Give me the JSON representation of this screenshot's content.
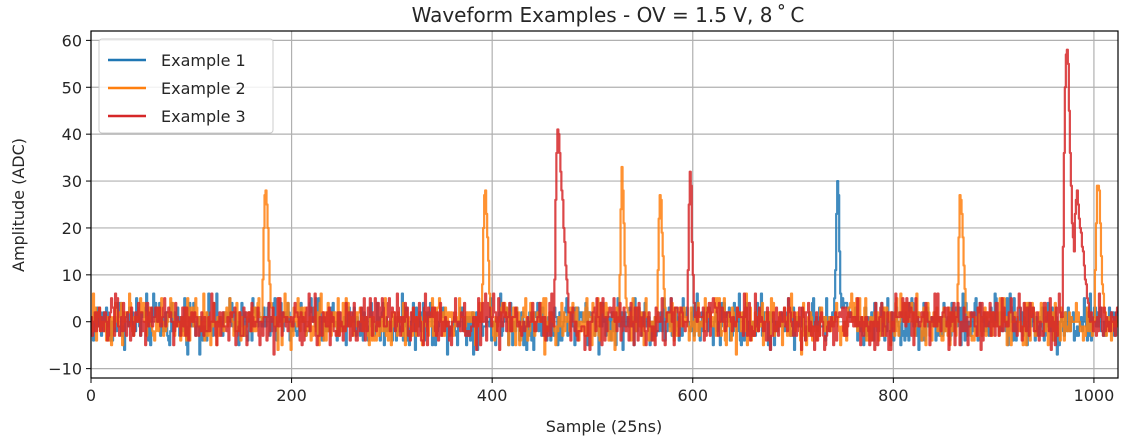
{
  "chart_data": {
    "type": "line",
    "title": "Waveform Examples - OV = 1.5 V, 8$^\\circ$C",
    "title_display": "Waveform Examples - OV = 1.5 V, 8 ˚ C",
    "xlabel": "Sample (25ns)",
    "ylabel": "Amplitude (ADC)",
    "xlim": [
      0,
      1024
    ],
    "ylim": [
      -12,
      62
    ],
    "xticks": [
      0,
      200,
      400,
      600,
      800,
      1000
    ],
    "yticks": [
      -10,
      0,
      10,
      20,
      30,
      40,
      50,
      60
    ],
    "ytick_labels": [
      "−10",
      "0",
      "10",
      "20",
      "30",
      "40",
      "50",
      "60"
    ],
    "grid": true,
    "legend_position": "top-left",
    "num_samples": 1024,
    "noise_range": [
      -5,
      5
    ],
    "series": [
      {
        "name": "Example 1",
        "color": "#1f77b4",
        "pulses": [
          {
            "x": [
              740,
              741,
              742,
              743,
              744,
              745,
              746,
              747,
              748,
              749,
              750,
              752,
              755,
              758,
              762
            ],
            "y": [
              0,
              5,
              12,
              22,
              30,
              26,
              14,
              6,
              4,
              5,
              3,
              4,
              2,
              1,
              0
            ]
          }
        ]
      },
      {
        "name": "Example 2",
        "color": "#ff7f0e",
        "pulses": [
          {
            "x": [
              170,
              171,
              172,
              173,
              174,
              175,
              176,
              177,
              178,
              179,
              180,
              182
            ],
            "y": [
              0,
              8,
              20,
              27,
              28,
              25,
              20,
              14,
              8,
              4,
              2,
              0
            ]
          },
          {
            "x": [
              389,
              390,
              391,
              392,
              393,
              394,
              395,
              396,
              397,
              398,
              399,
              401
            ],
            "y": [
              0,
              8,
              20,
              27,
              28,
              24,
              18,
              12,
              7,
              3,
              1,
              0
            ]
          },
          {
            "x": [
              526,
              527,
              528,
              529,
              530,
              531,
              532,
              533,
              534,
              535,
              537
            ],
            "y": [
              0,
              10,
              24,
              32,
              28,
              20,
              12,
              6,
              3,
              1,
              0
            ]
          },
          {
            "x": [
              564,
              565,
              566,
              567,
              568,
              569,
              570,
              571,
              572,
              573,
              575
            ],
            "y": [
              0,
              10,
              22,
              27,
              26,
              20,
              13,
              7,
              3,
              1,
              0
            ]
          },
          {
            "x": [
              863,
              864,
              865,
              866,
              867,
              868,
              869,
              870,
              871,
              872,
              873,
              875
            ],
            "y": [
              0,
              8,
              18,
              26,
              27,
              24,
              18,
              12,
              7,
              3,
              1,
              0
            ]
          },
          {
            "x": [
              1000,
              1001,
              1002,
              1003,
              1004,
              1005,
              1006,
              1007,
              1008,
              1009,
              1010,
              1012
            ],
            "y": [
              0,
              10,
              22,
              28,
              29,
              27,
              20,
              14,
              9,
              5,
              2,
              0
            ]
          }
        ]
      },
      {
        "name": "Example 3",
        "color": "#d62728",
        "pulses": [
          {
            "x": [
              461,
              462,
              463,
              464,
              465,
              466,
              467,
              468,
              469,
              470,
              471,
              472,
              473,
              474,
              475,
              476,
              478
            ],
            "y": [
              0,
              10,
              25,
              36,
              42,
              40,
              36,
              32,
              28,
              25,
              21,
              17,
              13,
              9,
              6,
              3,
              0
            ]
          },
          {
            "x": [
              594,
              595,
              596,
              597,
              598,
              599,
              600,
              601,
              602,
              604
            ],
            "y": [
              0,
              12,
              26,
              32,
              28,
              18,
              10,
              5,
              2,
              0
            ]
          },
          {
            "x": [
              968,
              969,
              970,
              971,
              972,
              973,
              974,
              975,
              976,
              977,
              978,
              979,
              980,
              981,
              982,
              983,
              984,
              985,
              986,
              987,
              988,
              989,
              990,
              991,
              992,
              993,
              994,
              995,
              996
            ],
            "y": [
              0,
              15,
              35,
              50,
              57,
              58,
              54,
              45,
              36,
              28,
              22,
              17,
              14,
              22,
              27,
              28,
              26,
              23,
              20,
              18,
              16,
              14,
              12,
              10,
              8,
              6,
              4,
              2,
              0
            ]
          }
        ]
      }
    ]
  }
}
